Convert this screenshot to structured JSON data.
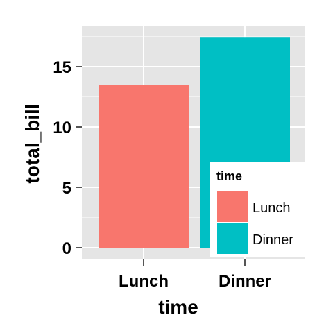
{
  "chart_data": {
    "type": "bar",
    "categories": [
      "Lunch",
      "Dinner"
    ],
    "values": [
      13.5,
      17.4
    ],
    "xlabel": "time",
    "ylabel": "total_bill",
    "ylim": [
      0,
      18
    ],
    "yticks": [
      0,
      5,
      10,
      15
    ],
    "grid": true,
    "legend": {
      "title": "time",
      "position": "bottom-right-inside",
      "entries": [
        "Lunch",
        "Dinner"
      ]
    },
    "colors": [
      "#F8766D",
      "#00BFC4"
    ],
    "panel_background": "#E5E5E5"
  }
}
